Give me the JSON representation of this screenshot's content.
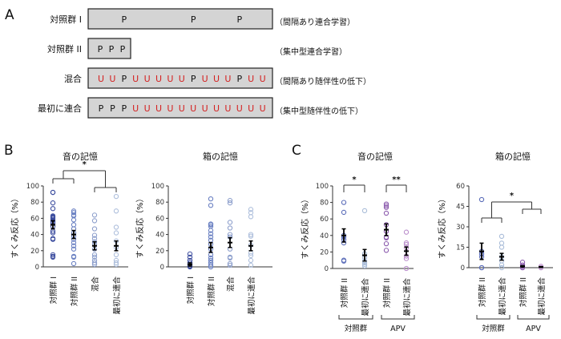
{
  "panel_labels": {
    "a": "A",
    "b": "B",
    "c": "C"
  },
  "protocol": {
    "rows": [
      {
        "label": "対照群 I",
        "sequence": "__P_____P___P__",
        "note": "（間隔あり連合学習）",
        "full_width": true
      },
      {
        "label": "対照群 II",
        "sequence": "PPP",
        "note": "（集中型連合学習）",
        "full_width": false
      },
      {
        "label": "混合",
        "sequence": "UUPUUUUUPUUUPUU",
        "note": "（間隔あり随伴性の低下）",
        "full_width": true
      },
      {
        "label": "最初に連合",
        "sequence": "PPPUUUUUUUUUUUU",
        "note": "（集中型随伴性の低下）",
        "full_width": true
      }
    ],
    "colors": {
      "P": "#111111",
      "U": "#d42020",
      "box_fill": "#d4d4d4"
    }
  },
  "chart_data": [
    {
      "type": "scatter",
      "panel": "B",
      "title": "音の記憶",
      "ylabel": "すくみ反応（%）",
      "ylim": [
        0,
        100
      ],
      "yticks": [
        "0",
        "20",
        "40",
        "60",
        "80",
        "100"
      ],
      "categories": [
        "対照群 I",
        "対照群 II",
        "混合",
        "最初に連合"
      ],
      "colors": [
        "#3b4c9e",
        "#6a80c2",
        "#8d9fcc",
        "#aebfdc"
      ],
      "points": [
        [
          92,
          92,
          79,
          72,
          63,
          62,
          61,
          60,
          58,
          56,
          54,
          50,
          44,
          42,
          35,
          34,
          15,
          13,
          12
        ],
        [
          69,
          67,
          64,
          63,
          58,
          52,
          47,
          42,
          38,
          34,
          30,
          26,
          22,
          13,
          12,
          4
        ],
        [
          64,
          57,
          47,
          39,
          35,
          31,
          28,
          22,
          15,
          12,
          8,
          5,
          3
        ],
        [
          87,
          69,
          49,
          42,
          32,
          24,
          15,
          8,
          5,
          3
        ]
      ],
      "mean": [
        52,
        40,
        26,
        26
      ],
      "sem": [
        5,
        5,
        5,
        6
      ],
      "significance": [
        {
          "type": "group-vs-group",
          "left": [
            0,
            1
          ],
          "right": [
            2,
            3
          ],
          "label": "*"
        }
      ],
      "groups": []
    },
    {
      "type": "scatter",
      "panel": "B",
      "title": "箱の記憶",
      "ylabel": "すくみ反応（%）",
      "ylim": [
        0,
        100
      ],
      "yticks": [
        "0",
        "20",
        "40",
        "60",
        "80",
        "100"
      ],
      "categories": [
        "対照群 I",
        "対照群 II",
        "混合",
        "最初に連合"
      ],
      "colors": [
        "#3b4c9e",
        "#6a80c2",
        "#8d9fcc",
        "#aebfdc"
      ],
      "points": [
        [
          16,
          12,
          8,
          5,
          3,
          1,
          0
        ],
        [
          84,
          76,
          53,
          52,
          50,
          45,
          41,
          37,
          33,
          28,
          22,
          15,
          11,
          8,
          5,
          2,
          0
        ],
        [
          82,
          79,
          55,
          48,
          40,
          37,
          22,
          12,
          11,
          4,
          2
        ],
        [
          71,
          67,
          62,
          40,
          38,
          27,
          17,
          14,
          8,
          2
        ]
      ],
      "mean": [
        3,
        24,
        30,
        26
      ],
      "sem": [
        2,
        6,
        6,
        6
      ],
      "significance": [],
      "groups": []
    },
    {
      "type": "scatter",
      "panel": "C",
      "title": "音の記憶",
      "ylabel": "すくみ反応（%）",
      "ylim": [
        0,
        100
      ],
      "yticks": [
        "0",
        "20",
        "40",
        "60",
        "80",
        "100"
      ],
      "categories": [
        "対照群 II",
        "最初に連合",
        "対照群 II",
        "最初に連合"
      ],
      "colors": [
        "#5a6cb8",
        "#a9bcd8",
        "#8c5cae",
        "#bb8fcc"
      ],
      "points": [
        [
          80,
          68,
          40,
          38,
          35,
          31,
          10,
          9
        ],
        [
          70,
          18,
          13,
          9,
          7,
          5,
          3
        ],
        [
          78,
          76,
          74,
          67,
          53,
          45,
          38,
          37,
          30,
          22
        ],
        [
          44,
          31,
          29,
          25,
          15,
          12,
          0
        ]
      ],
      "mean": [
        40,
        16,
        47,
        21
      ],
      "sem": [
        8,
        7,
        7,
        5
      ],
      "significance": [
        {
          "type": "pair",
          "left": [
            0
          ],
          "right": [
            1
          ],
          "label": "*"
        },
        {
          "type": "pair",
          "left": [
            2
          ],
          "right": [
            3
          ],
          "label": "**"
        }
      ],
      "groups": [
        {
          "label": "対照群",
          "members": [
            0,
            1
          ]
        },
        {
          "label": "APV",
          "members": [
            2,
            3
          ]
        }
      ]
    },
    {
      "type": "scatter",
      "panel": "C",
      "title": "箱の記憶",
      "ylabel": "すくみ反応（%）",
      "ylim": [
        0,
        60
      ],
      "yticks": [
        "0",
        "15",
        "30",
        "45",
        "60"
      ],
      "categories": [
        "対照群 II",
        "最初に連合",
        "対照群 II",
        "最初に連合"
      ],
      "colors": [
        "#5a6cb8",
        "#a9bcd8",
        "#8c5cae",
        "#bb8fcc"
      ],
      "points": [
        [
          50,
          12,
          10,
          8,
          0,
          0
        ],
        [
          23,
          18,
          15,
          8,
          5,
          2,
          0
        ],
        [
          4,
          2,
          1,
          0,
          0
        ],
        [
          1,
          0,
          0
        ]
      ],
      "mean": [
        12,
        8,
        1,
        0.5
      ],
      "sem": [
        6,
        2.5,
        0.5,
        0.3
      ],
      "significance": [
        {
          "type": "group-vs-group",
          "left": [
            0,
            1
          ],
          "right": [
            2,
            3
          ],
          "label": "*"
        }
      ],
      "groups": [
        {
          "label": "対照群",
          "members": [
            0,
            1
          ]
        },
        {
          "label": "APV",
          "members": [
            2,
            3
          ]
        }
      ]
    }
  ]
}
